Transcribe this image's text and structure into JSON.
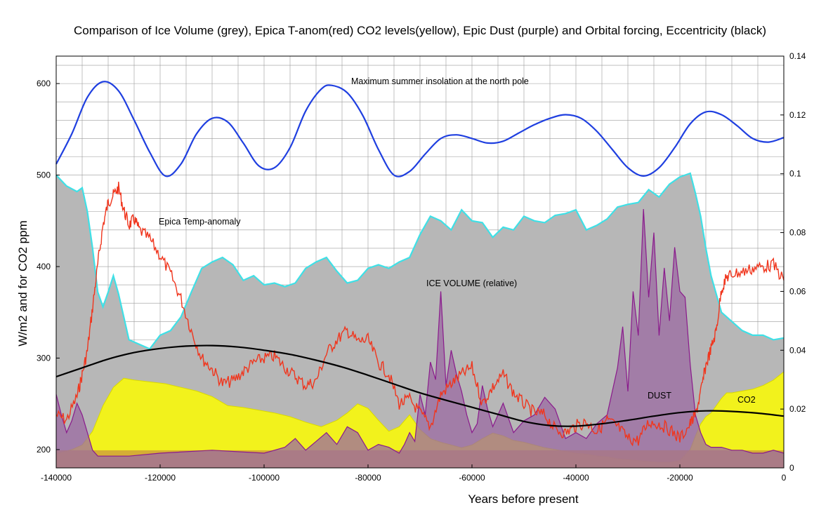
{
  "chart_data": {
    "type": "area",
    "title": "Comparison of Ice Volume (grey), Epica T-anom(red) CO2 levels(yellow), Epic Dust (purple) and Orbital forcing, Eccentricity (black)",
    "xlabel": "Years before present",
    "ylabel": "W/m2 and for CO2 ppm",
    "xlim": [
      -140000,
      0
    ],
    "ylim": [
      180,
      630
    ],
    "y2lim": [
      0,
      0.14
    ],
    "grid": true,
    "x_ticks": [
      -140000,
      -120000,
      -100000,
      -80000,
      -60000,
      -40000,
      -20000,
      0
    ],
    "y_ticks": [
      200,
      300,
      400,
      500,
      600
    ],
    "y2_ticks": [
      0,
      0.02,
      0.04,
      0.06,
      0.08,
      0.1,
      0.12,
      0.14
    ],
    "annotations": {
      "insolation": "Maximum summer insolation at the north pole",
      "temp": "Epica Temp-anomaly",
      "ice": "ICE VOLUME (relative)",
      "dust": "DUST",
      "co2": "CO2"
    },
    "colors": {
      "ice_fill": "#b7b7b7",
      "ice_edge": "#3fe0e6",
      "co2_fill": "#f2f21c",
      "dust_fill": "#9b6aa2",
      "dust_line": "#8a1a8c",
      "base_fill": "#d0a23a",
      "temp": "#f0361e",
      "insolation": "#1f3fe0",
      "eccentricity": "#000000"
    },
    "series": [
      {
        "name": "Maximum summer insolation at the north pole",
        "axis": "left",
        "x": [
          -140000,
          -137000,
          -134000,
          -131000,
          -128000,
          -125000,
          -122000,
          -119000,
          -116000,
          -113000,
          -110000,
          -107000,
          -104000,
          -101000,
          -98000,
          -95000,
          -92000,
          -89000,
          -87000,
          -84000,
          -81000,
          -78000,
          -75000,
          -72000,
          -69000,
          -66000,
          -63000,
          -60000,
          -57000,
          -54000,
          -51000,
          -48000,
          -45000,
          -42000,
          -39000,
          -36000,
          -33000,
          -30000,
          -27000,
          -24000,
          -21000,
          -18000,
          -15000,
          -12000,
          -9000,
          -6000,
          -3000,
          0
        ],
        "values": [
          512,
          545,
          585,
          602,
          592,
          560,
          525,
          499,
          512,
          545,
          562,
          558,
          535,
          510,
          508,
          530,
          570,
          594,
          598,
          590,
          565,
          528,
          500,
          504,
          523,
          540,
          544,
          540,
          535,
          537,
          546,
          555,
          562,
          566,
          562,
          548,
          528,
          508,
          499,
          508,
          530,
          556,
          569,
          566,
          554,
          540,
          536,
          541
        ]
      },
      {
        "name": "Ice volume",
        "axis": "left",
        "x": [
          -140000,
          -138000,
          -136000,
          -135000,
          -134000,
          -133000,
          -132000,
          -131000,
          -130000,
          -129000,
          -128000,
          -127000,
          -126000,
          -124000,
          -122000,
          -120000,
          -118000,
          -116000,
          -114000,
          -112000,
          -110000,
          -108000,
          -106000,
          -104000,
          -102000,
          -100000,
          -98000,
          -96000,
          -94000,
          -92000,
          -90000,
          -88000,
          -86000,
          -84000,
          -82000,
          -80000,
          -78000,
          -76000,
          -74000,
          -72000,
          -70000,
          -68000,
          -66000,
          -64000,
          -62000,
          -60000,
          -58000,
          -56000,
          -54000,
          -52000,
          -50000,
          -48000,
          -46000,
          -44000,
          -42000,
          -40000,
          -38000,
          -36000,
          -34000,
          -32000,
          -30000,
          -28000,
          -26000,
          -24000,
          -22000,
          -20000,
          -18000,
          -17000,
          -16000,
          -15000,
          -14000,
          -13000,
          -12000,
          -10000,
          -8000,
          -6000,
          -4000,
          -2000,
          0
        ],
        "values": [
          500,
          488,
          482,
          486,
          460,
          420,
          372,
          356,
          372,
          390,
          370,
          345,
          320,
          315,
          310,
          325,
          330,
          345,
          372,
          398,
          405,
          410,
          402,
          385,
          390,
          380,
          382,
          378,
          382,
          398,
          405,
          410,
          395,
          382,
          385,
          398,
          402,
          398,
          405,
          410,
          435,
          455,
          450,
          440,
          462,
          450,
          448,
          432,
          443,
          440,
          455,
          450,
          448,
          456,
          458,
          462,
          440,
          445,
          452,
          465,
          468,
          470,
          484,
          476,
          490,
          498,
          502,
          480,
          455,
          420,
          390,
          370,
          350,
          340,
          330,
          325,
          325,
          320,
          322
        ]
      },
      {
        "name": "CO2",
        "axis": "left",
        "x": [
          -140000,
          -137000,
          -135000,
          -133000,
          -131000,
          -129000,
          -127000,
          -125000,
          -122000,
          -119000,
          -116000,
          -113000,
          -110000,
          -107000,
          -104000,
          -101000,
          -98000,
          -95000,
          -92000,
          -89000,
          -86000,
          -84000,
          -82000,
          -80000,
          -78000,
          -76000,
          -74000,
          -72000,
          -70000,
          -68000,
          -66000,
          -64000,
          -62000,
          -60000,
          -58000,
          -56000,
          -54000,
          -52000,
          -50000,
          -48000,
          -46000,
          -44000,
          -42000,
          -40000,
          -38000,
          -36000,
          -34000,
          -32000,
          -30000,
          -28000,
          -26000,
          -24000,
          -22000,
          -20000,
          -18000,
          -17000,
          -16000,
          -15000,
          -14000,
          -13000,
          -12000,
          -11000,
          -10000,
          -8000,
          -6000,
          -4000,
          -2000,
          0
        ],
        "values": [
          195,
          200,
          205,
          220,
          248,
          268,
          278,
          276,
          274,
          272,
          268,
          264,
          258,
          248,
          246,
          243,
          240,
          236,
          230,
          225,
          232,
          240,
          250,
          245,
          232,
          220,
          225,
          238,
          222,
          212,
          208,
          205,
          202,
          205,
          212,
          218,
          215,
          210,
          208,
          205,
          202,
          200,
          198,
          196,
          195,
          193,
          192,
          190,
          189,
          188,
          187,
          186,
          186,
          188,
          200,
          215,
          228,
          236,
          240,
          248,
          256,
          262,
          262,
          264,
          266,
          270,
          276,
          285
        ]
      },
      {
        "name": "DUST",
        "axis": "right",
        "x": [
          -140000,
          -139000,
          -138000,
          -137000,
          -136000,
          -135000,
          -134000,
          -133000,
          -132000,
          -130000,
          -126000,
          -120000,
          -110000,
          -100000,
          -96000,
          -94000,
          -92000,
          -90000,
          -88000,
          -86000,
          -84000,
          -82000,
          -80000,
          -78000,
          -76000,
          -74000,
          -73000,
          -72000,
          -71000,
          -70000,
          -69000,
          -68000,
          -67000,
          -66000,
          -65000,
          -64000,
          -63000,
          -62000,
          -61000,
          -60000,
          -59000,
          -58000,
          -57000,
          -56000,
          -55000,
          -54000,
          -52000,
          -50000,
          -48000,
          -46000,
          -44000,
          -42000,
          -40000,
          -38000,
          -36000,
          -34000,
          -32000,
          -31000,
          -30000,
          -29000,
          -28000,
          -27000,
          -26000,
          -25000,
          -24000,
          -23000,
          -22000,
          -21000,
          -20000,
          -19000,
          -18000,
          -17000,
          -16000,
          -15000,
          -14000,
          -12000,
          -10000,
          -8000,
          -6000,
          -4000,
          -2000,
          0
        ],
        "values": [
          0.025,
          0.018,
          0.012,
          0.016,
          0.022,
          0.018,
          0.012,
          0.006,
          0.004,
          0.004,
          0.004,
          0.005,
          0.006,
          0.005,
          0.007,
          0.01,
          0.006,
          0.009,
          0.012,
          0.008,
          0.014,
          0.012,
          0.006,
          0.008,
          0.007,
          0.005,
          0.008,
          0.012,
          0.009,
          0.025,
          0.018,
          0.036,
          0.03,
          0.06,
          0.028,
          0.04,
          0.032,
          0.026,
          0.018,
          0.012,
          0.015,
          0.028,
          0.02,
          0.014,
          0.018,
          0.022,
          0.012,
          0.016,
          0.018,
          0.024,
          0.02,
          0.01,
          0.012,
          0.01,
          0.015,
          0.018,
          0.034,
          0.048,
          0.026,
          0.06,
          0.045,
          0.088,
          0.058,
          0.08,
          0.045,
          0.068,
          0.05,
          0.075,
          0.06,
          0.058,
          0.035,
          0.018,
          0.012,
          0.008,
          0.007,
          0.007,
          0.006,
          0.006,
          0.005,
          0.005,
          0.006,
          0.005
        ]
      },
      {
        "name": "Epica Temp-anomaly",
        "axis": "left",
        "x": [
          -140000,
          -138000,
          -136000,
          -135000,
          -134000,
          -133000,
          -132000,
          -131000,
          -130000,
          -129000,
          -128000,
          -127000,
          -126000,
          -125000,
          -124000,
          -122000,
          -120000,
          -118000,
          -116000,
          -114000,
          -112000,
          -110000,
          -108000,
          -106000,
          -104000,
          -102000,
          -100000,
          -98000,
          -96000,
          -94000,
          -92000,
          -90000,
          -88000,
          -86000,
          -84000,
          -82000,
          -80000,
          -78000,
          -76000,
          -74000,
          -72000,
          -70000,
          -68000,
          -66000,
          -64000,
          -62000,
          -60000,
          -58000,
          -56000,
          -54000,
          -52000,
          -50000,
          -48000,
          -46000,
          -44000,
          -42000,
          -40000,
          -38000,
          -36000,
          -34000,
          -32000,
          -30000,
          -28000,
          -26000,
          -24000,
          -22000,
          -20000,
          -18000,
          -17000,
          -16000,
          -15000,
          -14000,
          -13000,
          -12000,
          -11000,
          -10000,
          -8000,
          -6000,
          -4000,
          -2000,
          0
        ],
        "values": [
          238,
          232,
          258,
          282,
          308,
          355,
          402,
          445,
          470,
          478,
          486,
          462,
          445,
          452,
          440,
          430,
          412,
          392,
          365,
          330,
          300,
          288,
          272,
          275,
          285,
          295,
          300,
          302,
          290,
          280,
          270,
          275,
          305,
          320,
          330,
          318,
          320,
          295,
          282,
          250,
          255,
          240,
          225,
          260,
          272,
          282,
          290,
          250,
          268,
          282,
          262,
          250,
          240,
          238,
          222,
          218,
          226,
          230,
          220,
          232,
          225,
          212,
          210,
          230,
          228,
          222,
          212,
          228,
          238,
          262,
          292,
          310,
          330,
          375,
          388,
          392,
          394,
          398,
          400,
          402,
          385
        ]
      },
      {
        "name": "Eccentricity",
        "axis": "right",
        "x": [
          -140000,
          -135000,
          -130000,
          -125000,
          -120000,
          -115000,
          -110000,
          -105000,
          -100000,
          -95000,
          -90000,
          -85000,
          -80000,
          -75000,
          -70000,
          -65000,
          -60000,
          -55000,
          -50000,
          -45000,
          -40000,
          -35000,
          -30000,
          -25000,
          -20000,
          -15000,
          -10000,
          -5000,
          0
        ],
        "values": [
          0.031,
          0.034,
          0.037,
          0.0392,
          0.0406,
          0.0414,
          0.0416,
          0.0411,
          0.04,
          0.0386,
          0.0366,
          0.0343,
          0.0315,
          0.0285,
          0.0255,
          0.023,
          0.0206,
          0.0182,
          0.0158,
          0.0144,
          0.0142,
          0.015,
          0.0162,
          0.0176,
          0.0188,
          0.0194,
          0.0192,
          0.0186,
          0.0176
        ]
      }
    ]
  }
}
